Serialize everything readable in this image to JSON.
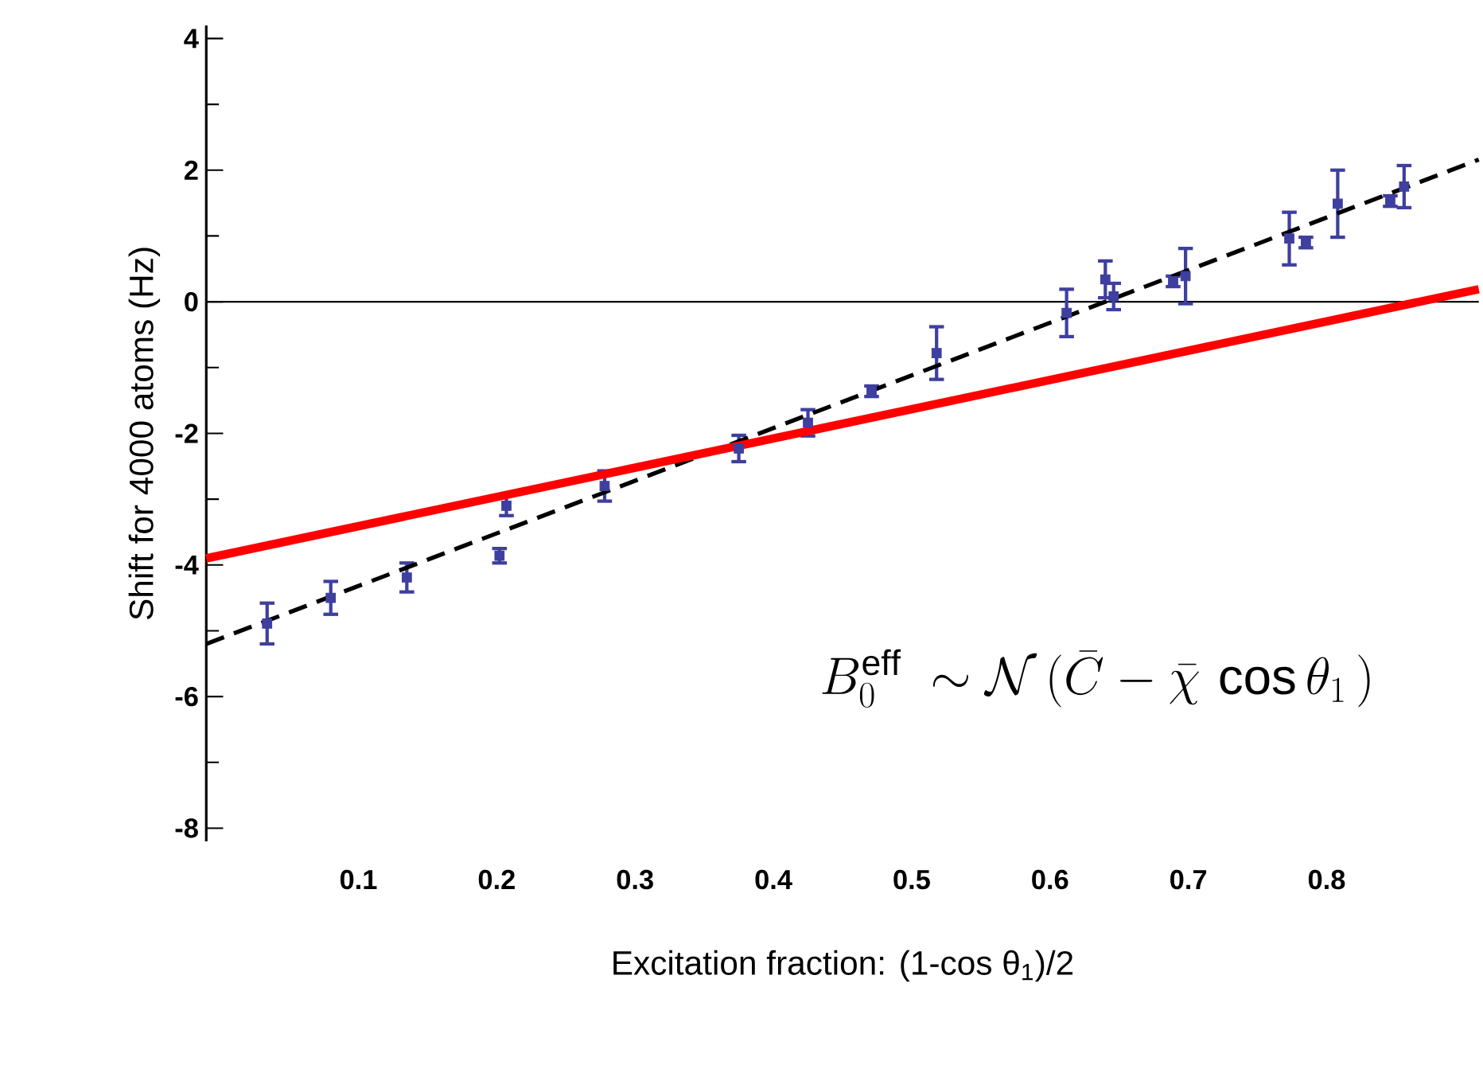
{
  "chart_data": {
    "type": "scatter",
    "xlabel": "Excitation fraction: (1-cos θ$_{1}$)/2",
    "ylabel": "Shift for 4000 atoms (Hz)",
    "xlim": [
      -0.01,
      0.91
    ],
    "ylim": [
      -8.2,
      4.2
    ],
    "xticks": [
      0.1,
      0.2,
      0.3,
      0.4,
      0.5,
      0.6,
      0.7,
      0.8
    ],
    "yticks": [
      -8,
      -6,
      -4,
      -2,
      0,
      2,
      4
    ],
    "ref_lines": [
      {
        "axis": "y",
        "value": 0,
        "color": "#000000"
      }
    ],
    "annotations": [
      "B_0^{\\mathrm{eff}}\\ \\sim\\mathcal{N}\\,(\\bar{C}-\\bar{\\chi}\\,\\cos\\theta_1\\,)"
    ],
    "series": [
      {
        "type": "scatter",
        "color": "#3f3f9f",
        "marker": "square",
        "x": [
          0.034,
          0.08,
          0.135,
          0.202,
          0.207,
          0.278,
          0.375,
          0.425,
          0.471,
          0.518,
          0.612,
          0.64,
          0.646,
          0.689,
          0.698,
          0.773,
          0.785,
          0.808,
          0.846,
          0.856
        ],
        "values": [
          -4.89,
          -4.5,
          -4.19,
          -3.86,
          -3.1,
          -2.8,
          -2.23,
          -1.84,
          -1.36,
          -0.78,
          -0.17,
          0.34,
          0.08,
          0.31,
          0.39,
          0.96,
          0.9,
          1.49,
          1.53,
          1.75
        ],
        "errors": [
          0.31,
          0.25,
          0.22,
          0.11,
          0.15,
          0.23,
          0.2,
          0.2,
          0.08,
          0.4,
          0.36,
          0.28,
          0.2,
          0.08,
          0.42,
          0.4,
          0.08,
          0.51,
          0.08,
          0.32
        ]
      },
      {
        "type": "line",
        "color": "#000000",
        "line_style": "dashed",
        "x": [
          -0.01,
          0.91
        ],
        "values": [
          -5.2,
          2.16
        ]
      },
      {
        "type": "line",
        "color": "#ff0000",
        "line_style": "solid",
        "x": [
          -0.01,
          0.91
        ],
        "values": [
          -3.9,
          0.19
        ]
      }
    ]
  }
}
